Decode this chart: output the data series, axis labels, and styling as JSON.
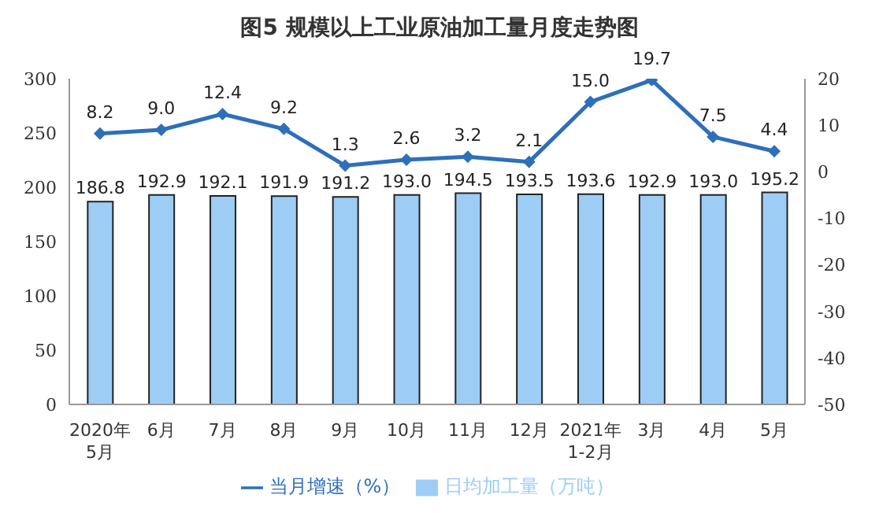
{
  "chart_data": {
    "type": "bar",
    "title": "图5  规模以上工业原油加工量月度走势图",
    "categories": [
      "2020年\n5月",
      "6月",
      "7月",
      "8月",
      "9月",
      "10月",
      "11月",
      "12月",
      "2021年\n1-2月",
      "3月",
      "4月",
      "5月"
    ],
    "series": [
      {
        "name": "日均加工量（万吨）",
        "color": "#9dcdf5",
        "values": [
          186.8,
          192.9,
          192.1,
          191.9,
          191.2,
          193.0,
          194.5,
          193.5,
          193.6,
          192.9,
          193.0,
          195.2
        ],
        "value_labels": [
          "186.8",
          "192.9",
          "192.1",
          "191.9",
          "191.2",
          "193.0",
          "194.5",
          "193.5",
          "193.6",
          "192.9",
          "193.0",
          "195.2"
        ]
      },
      {
        "name": "当月增速（%）",
        "type": "line",
        "axis": "y2",
        "color": "#2e6fba",
        "values": [
          8.2,
          9.0,
          12.4,
          9.2,
          1.3,
          2.6,
          3.2,
          2.1,
          15.0,
          19.7,
          7.5,
          4.4
        ],
        "value_labels": [
          "8.2",
          "9.0",
          "12.4",
          "9.2",
          "1.3",
          "2.6",
          "3.2",
          "2.1",
          "15.0",
          "19.7",
          "7.5",
          "4.4"
        ]
      }
    ],
    "ylim": [
      0,
      300
    ],
    "yticks": [
      0,
      50,
      100,
      150,
      200,
      250,
      300
    ],
    "y2lim": [
      -50,
      20
    ],
    "y2ticks": [
      -50,
      -40,
      -30,
      -20,
      -10,
      0,
      10,
      20
    ],
    "grid": false,
    "legend": "bottom",
    "marker": "diamond",
    "line_style": "solid"
  }
}
